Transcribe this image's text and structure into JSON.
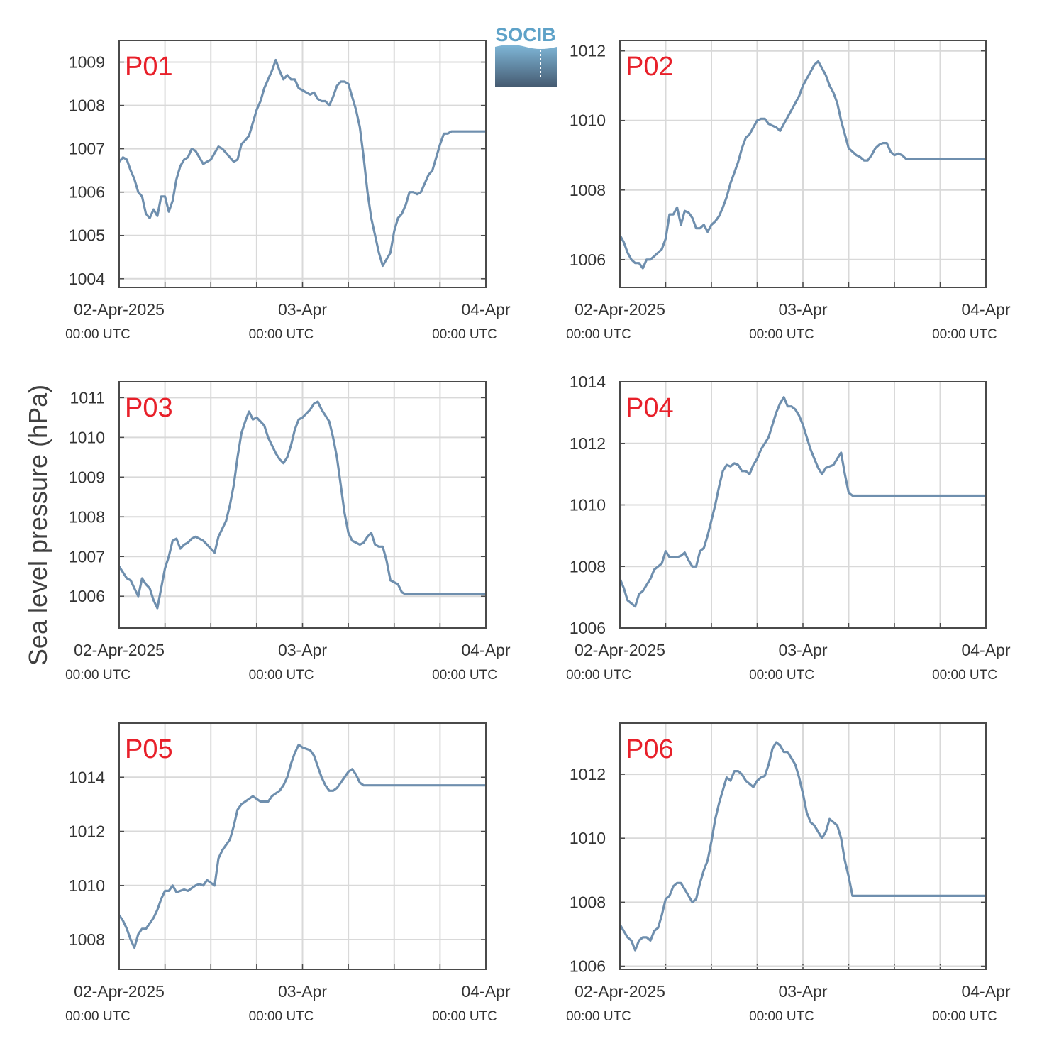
{
  "colors": {
    "series": "#6f8fae",
    "grid": "#d9d9d9",
    "axis": "#4a4a4a",
    "panel_label": "#e8202a",
    "logo_text": "#5ea2c8",
    "logo_top": "#7fb7d8",
    "logo_bottom": "#455a70"
  },
  "logo": {
    "text": "SOCIB"
  },
  "ylabel": "Sea level pressure (hPa)",
  "x_tick_labels": [
    "02-Apr-2025",
    "03-Apr",
    "04-Apr"
  ],
  "x_sub_label": "00:00 UTC",
  "chart_data": [
    {
      "type": "line",
      "label": "P01",
      "xlim": [
        0,
        48
      ],
      "ylim": [
        1003.8,
        1009.5
      ],
      "yticks": [
        1004,
        1005,
        1006,
        1007,
        1008,
        1009
      ],
      "x": [
        0,
        0.5,
        1,
        1.5,
        2,
        2.5,
        3,
        3.5,
        4,
        4.5,
        5,
        5.5,
        6,
        6.5,
        7,
        7.5,
        8,
        8.5,
        9,
        9.5,
        10,
        10.5,
        11,
        11.5,
        12,
        12.5,
        13,
        13.5,
        14,
        14.5,
        15,
        15.5,
        16,
        16.5,
        17,
        17.5,
        18,
        18.5,
        19,
        19.5,
        20,
        20.5,
        21,
        21.5,
        22,
        22.5,
        23,
        23.5,
        24,
        24.5,
        25,
        25.5,
        26,
        26.5,
        27,
        27.5,
        28,
        28.5,
        29,
        29.5,
        30,
        30.5,
        31,
        31.5,
        32,
        32.5,
        33,
        33.5,
        34,
        34.5,
        35,
        35.5,
        36,
        36.5,
        37,
        37.5,
        38,
        38.5,
        39,
        39.5,
        40,
        40.5,
        41,
        41.5,
        42,
        42.5,
        43,
        43.5,
        44,
        44.5,
        45,
        45.5,
        46,
        46.5,
        47,
        47.5,
        48
      ],
      "values": [
        1006.7,
        1006.8,
        1006.75,
        1006.5,
        1006.3,
        1006.0,
        1005.9,
        1005.5,
        1005.4,
        1005.6,
        1005.45,
        1005.9,
        1005.9,
        1005.55,
        1005.8,
        1006.3,
        1006.6,
        1006.75,
        1006.8,
        1007.0,
        1006.95,
        1006.8,
        1006.65,
        1006.7,
        1006.75,
        1006.9,
        1007.05,
        1007.0,
        1006.9,
        1006.8,
        1006.7,
        1006.75,
        1007.1,
        1007.2,
        1007.3,
        1007.6,
        1007.9,
        1008.1,
        1008.4,
        1008.6,
        1008.8,
        1009.05,
        1008.8,
        1008.6,
        1008.7,
        1008.6,
        1008.6,
        1008.4,
        1008.35,
        1008.3,
        1008.25,
        1008.3,
        1008.15,
        1008.1,
        1008.1,
        1008.0,
        1008.2,
        1008.45,
        1008.55,
        1008.55,
        1008.5,
        1008.2,
        1007.9,
        1007.5,
        1006.8,
        1006.0,
        1005.4,
        1005.0,
        1004.6,
        1004.3,
        1004.45,
        1004.6,
        1005.1,
        1005.4,
        1005.5,
        1005.7,
        1006.0,
        1006.0,
        1005.95,
        1006.0,
        1006.2,
        1006.4,
        1006.5,
        1006.8,
        1007.1,
        1007.35,
        1007.35,
        1007.4,
        1007.4,
        1007.4,
        1007.4,
        1007.4,
        1007.4,
        1007.4,
        1007.4,
        1007.4,
        1007.4
      ]
    },
    {
      "type": "line",
      "label": "P02",
      "xlim": [
        0,
        48
      ],
      "ylim": [
        1005.2,
        1012.3
      ],
      "yticks": [
        1006,
        1008,
        1010,
        1012
      ],
      "x": [
        0,
        0.5,
        1,
        1.5,
        2,
        2.5,
        3,
        3.5,
        4,
        4.5,
        5,
        5.5,
        6,
        6.5,
        7,
        7.5,
        8,
        8.5,
        9,
        9.5,
        10,
        10.5,
        11,
        11.5,
        12,
        12.5,
        13,
        13.5,
        14,
        14.5,
        15,
        15.5,
        16,
        16.5,
        17,
        17.5,
        18,
        18.5,
        19,
        19.5,
        20,
        20.5,
        21,
        21.5,
        22,
        22.5,
        23,
        23.5,
        24,
        24.5,
        25,
        25.5,
        26,
        26.5,
        27,
        27.5,
        28,
        28.5,
        29,
        29.5,
        30,
        30.5,
        31,
        31.5,
        32,
        32.5,
        33,
        33.5,
        34,
        34.5,
        35,
        35.5,
        36,
        36.5,
        37,
        37.5,
        38,
        38.5,
        39,
        39.5,
        40,
        40.5,
        41,
        41.5,
        42,
        42.5,
        43,
        43.5,
        44,
        44.5,
        45,
        45.5,
        46,
        46.5,
        47,
        47.5,
        48
      ],
      "values": [
        1006.7,
        1006.5,
        1006.2,
        1006.0,
        1005.9,
        1005.9,
        1005.75,
        1006.0,
        1006.0,
        1006.1,
        1006.2,
        1006.3,
        1006.6,
        1007.3,
        1007.3,
        1007.5,
        1007.0,
        1007.4,
        1007.35,
        1007.2,
        1006.9,
        1006.9,
        1007.0,
        1006.8,
        1007.0,
        1007.1,
        1007.25,
        1007.5,
        1007.8,
        1008.2,
        1008.5,
        1008.8,
        1009.2,
        1009.5,
        1009.6,
        1009.8,
        1010.0,
        1010.05,
        1010.05,
        1009.9,
        1009.85,
        1009.8,
        1009.7,
        1009.9,
        1010.1,
        1010.3,
        1010.5,
        1010.7,
        1011.0,
        1011.2,
        1011.4,
        1011.6,
        1011.7,
        1011.5,
        1011.3,
        1011.0,
        1010.8,
        1010.5,
        1010.0,
        1009.6,
        1009.2,
        1009.1,
        1009.0,
        1008.95,
        1008.85,
        1008.85,
        1009.0,
        1009.2,
        1009.3,
        1009.35,
        1009.35,
        1009.1,
        1009.0,
        1009.05,
        1009.0,
        1008.9,
        1008.9,
        1008.9,
        1008.9,
        1008.9,
        1008.9,
        1008.9,
        1008.9,
        1008.9,
        1008.9,
        1008.9,
        1008.9,
        1008.9,
        1008.9,
        1008.9,
        1008.9,
        1008.9,
        1008.9,
        1008.9,
        1008.9,
        1008.9,
        1008.9
      ]
    },
    {
      "type": "line",
      "label": "P03",
      "xlim": [
        0,
        48
      ],
      "ylim": [
        1005.2,
        1011.4
      ],
      "yticks": [
        1006,
        1007,
        1008,
        1009,
        1010,
        1011
      ],
      "x": [
        0,
        0.5,
        1,
        1.5,
        2,
        2.5,
        3,
        3.5,
        4,
        4.5,
        5,
        5.5,
        6,
        6.5,
        7,
        7.5,
        8,
        8.5,
        9,
        9.5,
        10,
        10.5,
        11,
        11.5,
        12,
        12.5,
        13,
        13.5,
        14,
        14.5,
        15,
        15.5,
        16,
        16.5,
        17,
        17.5,
        18,
        18.5,
        19,
        19.5,
        20,
        20.5,
        21,
        21.5,
        22,
        22.5,
        23,
        23.5,
        24,
        24.5,
        25,
        25.5,
        26,
        26.5,
        27,
        27.5,
        28,
        28.5,
        29,
        29.5,
        30,
        30.5,
        31,
        31.5,
        32,
        32.5,
        33,
        33.5,
        34,
        34.5,
        35,
        35.5,
        36,
        36.5,
        37,
        37.5,
        38,
        38.5,
        39,
        39.5,
        40,
        40.5,
        41,
        41.5,
        42,
        42.5,
        43,
        43.5,
        44,
        44.5,
        45,
        45.5,
        46,
        46.5,
        47,
        47.5,
        48
      ],
      "values": [
        1006.75,
        1006.6,
        1006.45,
        1006.4,
        1006.2,
        1006.0,
        1006.45,
        1006.3,
        1006.2,
        1005.9,
        1005.7,
        1006.2,
        1006.7,
        1007.0,
        1007.4,
        1007.45,
        1007.2,
        1007.3,
        1007.35,
        1007.45,
        1007.5,
        1007.45,
        1007.4,
        1007.3,
        1007.2,
        1007.1,
        1007.5,
        1007.7,
        1007.9,
        1008.3,
        1008.8,
        1009.5,
        1010.1,
        1010.4,
        1010.65,
        1010.45,
        1010.5,
        1010.4,
        1010.3,
        1010.0,
        1009.8,
        1009.6,
        1009.45,
        1009.35,
        1009.5,
        1009.8,
        1010.2,
        1010.45,
        1010.5,
        1010.6,
        1010.7,
        1010.85,
        1010.9,
        1010.7,
        1010.55,
        1010.4,
        1010.0,
        1009.5,
        1008.8,
        1008.1,
        1007.6,
        1007.4,
        1007.35,
        1007.3,
        1007.35,
        1007.5,
        1007.6,
        1007.3,
        1007.25,
        1007.25,
        1006.9,
        1006.4,
        1006.35,
        1006.3,
        1006.1,
        1006.05,
        1006.05,
        1006.05,
        1006.05,
        1006.05,
        1006.05,
        1006.05,
        1006.05,
        1006.05,
        1006.05,
        1006.05,
        1006.05,
        1006.05,
        1006.05,
        1006.05,
        1006.05,
        1006.05,
        1006.05,
        1006.05,
        1006.05,
        1006.05,
        1006.05
      ]
    },
    {
      "type": "line",
      "label": "P04",
      "xlim": [
        0,
        48
      ],
      "ylim": [
        1006.0,
        1014.0
      ],
      "yticks": [
        1006,
        1008,
        1010,
        1012,
        1014
      ],
      "x": [
        0,
        0.5,
        1,
        1.5,
        2,
        2.5,
        3,
        3.5,
        4,
        4.5,
        5,
        5.5,
        6,
        6.5,
        7,
        7.5,
        8,
        8.5,
        9,
        9.5,
        10,
        10.5,
        11,
        11.5,
        12,
        12.5,
        13,
        13.5,
        14,
        14.5,
        15,
        15.5,
        16,
        16.5,
        17,
        17.5,
        18,
        18.5,
        19,
        19.5,
        20,
        20.5,
        21,
        21.5,
        22,
        22.5,
        23,
        23.5,
        24,
        24.5,
        25,
        25.5,
        26,
        26.5,
        27,
        27.5,
        28,
        28.5,
        29,
        29.5,
        30,
        30.5,
        31,
        31.5,
        32,
        32.5,
        33,
        33.5,
        34,
        34.5,
        35,
        35.5,
        36,
        36.5,
        37,
        37.5,
        38,
        38.5,
        39,
        39.5,
        40,
        40.5,
        41,
        41.5,
        42,
        42.5,
        43,
        43.5,
        44,
        44.5,
        45,
        45.5,
        46,
        46.5,
        47,
        47.5,
        48
      ],
      "values": [
        1007.6,
        1007.3,
        1006.9,
        1006.8,
        1006.7,
        1007.1,
        1007.2,
        1007.4,
        1007.6,
        1007.9,
        1008.0,
        1008.1,
        1008.5,
        1008.3,
        1008.3,
        1008.3,
        1008.35,
        1008.45,
        1008.2,
        1008.0,
        1008.0,
        1008.5,
        1008.6,
        1009.0,
        1009.5,
        1010.0,
        1010.6,
        1011.1,
        1011.3,
        1011.25,
        1011.35,
        1011.3,
        1011.1,
        1011.1,
        1011.0,
        1011.3,
        1011.5,
        1011.8,
        1012.0,
        1012.2,
        1012.6,
        1013.0,
        1013.3,
        1013.5,
        1013.2,
        1013.2,
        1013.1,
        1012.9,
        1012.6,
        1012.2,
        1011.8,
        1011.5,
        1011.2,
        1011.0,
        1011.2,
        1011.25,
        1011.3,
        1011.5,
        1011.7,
        1011.0,
        1010.4,
        1010.3,
        1010.3,
        1010.3,
        1010.3,
        1010.3,
        1010.3,
        1010.3,
        1010.3,
        1010.3,
        1010.3,
        1010.3,
        1010.3,
        1010.3,
        1010.3,
        1010.3,
        1010.3,
        1010.3,
        1010.3,
        1010.3,
        1010.3,
        1010.3,
        1010.3,
        1010.3,
        1010.3,
        1010.3,
        1010.3,
        1010.3,
        1010.3,
        1010.3,
        1010.3,
        1010.3,
        1010.3,
        1010.3,
        1010.3,
        1010.3,
        1010.3
      ]
    },
    {
      "type": "line",
      "label": "P05",
      "xlim": [
        0,
        48
      ],
      "ylim": [
        1006.9,
        1016.0
      ],
      "yticks": [
        1008,
        1010,
        1012,
        1014
      ],
      "x": [
        0,
        0.5,
        1,
        1.5,
        2,
        2.5,
        3,
        3.5,
        4,
        4.5,
        5,
        5.5,
        6,
        6.5,
        7,
        7.5,
        8,
        8.5,
        9,
        9.5,
        10,
        10.5,
        11,
        11.5,
        12,
        12.5,
        13,
        13.5,
        14,
        14.5,
        15,
        15.5,
        16,
        16.5,
        17,
        17.5,
        18,
        18.5,
        19,
        19.5,
        20,
        20.5,
        21,
        21.5,
        22,
        22.5,
        23,
        23.5,
        24,
        24.5,
        25,
        25.5,
        26,
        26.5,
        27,
        27.5,
        28,
        28.5,
        29,
        29.5,
        30,
        30.5,
        31,
        31.5,
        32,
        32.5,
        33,
        33.5,
        34,
        34.5,
        35,
        35.5,
        36,
        36.5,
        37,
        37.5,
        38,
        38.5,
        39,
        39.5,
        40,
        40.5,
        41,
        41.5,
        42,
        42.5,
        43,
        43.5,
        44,
        44.5,
        45,
        45.5,
        46,
        46.5,
        47,
        47.5,
        48
      ],
      "values": [
        1008.9,
        1008.7,
        1008.4,
        1008.0,
        1007.7,
        1008.2,
        1008.4,
        1008.4,
        1008.6,
        1008.8,
        1009.1,
        1009.5,
        1009.8,
        1009.8,
        1010.0,
        1009.75,
        1009.8,
        1009.85,
        1009.8,
        1009.9,
        1010.0,
        1010.05,
        1010.0,
        1010.2,
        1010.1,
        1010.0,
        1011.0,
        1011.3,
        1011.5,
        1011.7,
        1012.2,
        1012.8,
        1013.0,
        1013.1,
        1013.2,
        1013.3,
        1013.2,
        1013.1,
        1013.1,
        1013.1,
        1013.3,
        1013.4,
        1013.5,
        1013.7,
        1014.0,
        1014.5,
        1014.9,
        1015.2,
        1015.1,
        1015.05,
        1015.0,
        1014.8,
        1014.4,
        1014.0,
        1013.7,
        1013.5,
        1013.5,
        1013.6,
        1013.8,
        1014.0,
        1014.2,
        1014.3,
        1014.1,
        1013.8,
        1013.7,
        1013.7,
        1013.7,
        1013.7,
        1013.7,
        1013.7,
        1013.7,
        1013.7,
        1013.7,
        1013.7,
        1013.7,
        1013.7,
        1013.7,
        1013.7,
        1013.7,
        1013.7,
        1013.7,
        1013.7,
        1013.7,
        1013.7,
        1013.7,
        1013.7,
        1013.7,
        1013.7,
        1013.7,
        1013.7,
        1013.7,
        1013.7,
        1013.7,
        1013.7,
        1013.7,
        1013.7,
        1013.7
      ]
    },
    {
      "type": "line",
      "label": "P06",
      "xlim": [
        0,
        48
      ],
      "ylim": [
        1005.9,
        1013.6
      ],
      "yticks": [
        1006,
        1008,
        1010,
        1012
      ],
      "x": [
        0,
        0.5,
        1,
        1.5,
        2,
        2.5,
        3,
        3.5,
        4,
        4.5,
        5,
        5.5,
        6,
        6.5,
        7,
        7.5,
        8,
        8.5,
        9,
        9.5,
        10,
        10.5,
        11,
        11.5,
        12,
        12.5,
        13,
        13.5,
        14,
        14.5,
        15,
        15.5,
        16,
        16.5,
        17,
        17.5,
        18,
        18.5,
        19,
        19.5,
        20,
        20.5,
        21,
        21.5,
        22,
        22.5,
        23,
        23.5,
        24,
        24.5,
        25,
        25.5,
        26,
        26.5,
        27,
        27.5,
        28,
        28.5,
        29,
        29.5,
        30,
        30.5,
        31,
        31.5,
        32,
        32.5,
        33,
        33.5,
        34,
        34.5,
        35,
        35.5,
        36,
        36.5,
        37,
        37.5,
        38,
        38.5,
        39,
        39.5,
        40,
        40.5,
        41,
        41.5,
        42,
        42.5,
        43,
        43.5,
        44,
        44.5,
        45,
        45.5,
        46,
        46.5,
        47,
        47.5,
        48
      ],
      "values": [
        1007.3,
        1007.1,
        1006.9,
        1006.8,
        1006.5,
        1006.8,
        1006.9,
        1006.9,
        1006.8,
        1007.1,
        1007.2,
        1007.6,
        1008.1,
        1008.2,
        1008.5,
        1008.6,
        1008.6,
        1008.4,
        1008.2,
        1008.0,
        1008.1,
        1008.6,
        1009.0,
        1009.3,
        1009.9,
        1010.6,
        1011.1,
        1011.5,
        1011.9,
        1011.8,
        1012.1,
        1012.1,
        1012.0,
        1011.8,
        1011.7,
        1011.6,
        1011.8,
        1011.9,
        1011.95,
        1012.3,
        1012.8,
        1013.0,
        1012.9,
        1012.7,
        1012.7,
        1012.5,
        1012.3,
        1011.9,
        1011.4,
        1010.8,
        1010.5,
        1010.4,
        1010.2,
        1010.0,
        1010.2,
        1010.6,
        1010.5,
        1010.4,
        1010.0,
        1009.3,
        1008.8,
        1008.2,
        1008.2,
        1008.2,
        1008.2,
        1008.2,
        1008.2,
        1008.2,
        1008.2,
        1008.2,
        1008.2,
        1008.2,
        1008.2,
        1008.2,
        1008.2,
        1008.2,
        1008.2,
        1008.2,
        1008.2,
        1008.2,
        1008.2,
        1008.2,
        1008.2,
        1008.2,
        1008.2,
        1008.2,
        1008.2,
        1008.2,
        1008.2,
        1008.2,
        1008.2,
        1008.2,
        1008.2,
        1008.2,
        1008.2,
        1008.2,
        1008.2
      ]
    }
  ]
}
